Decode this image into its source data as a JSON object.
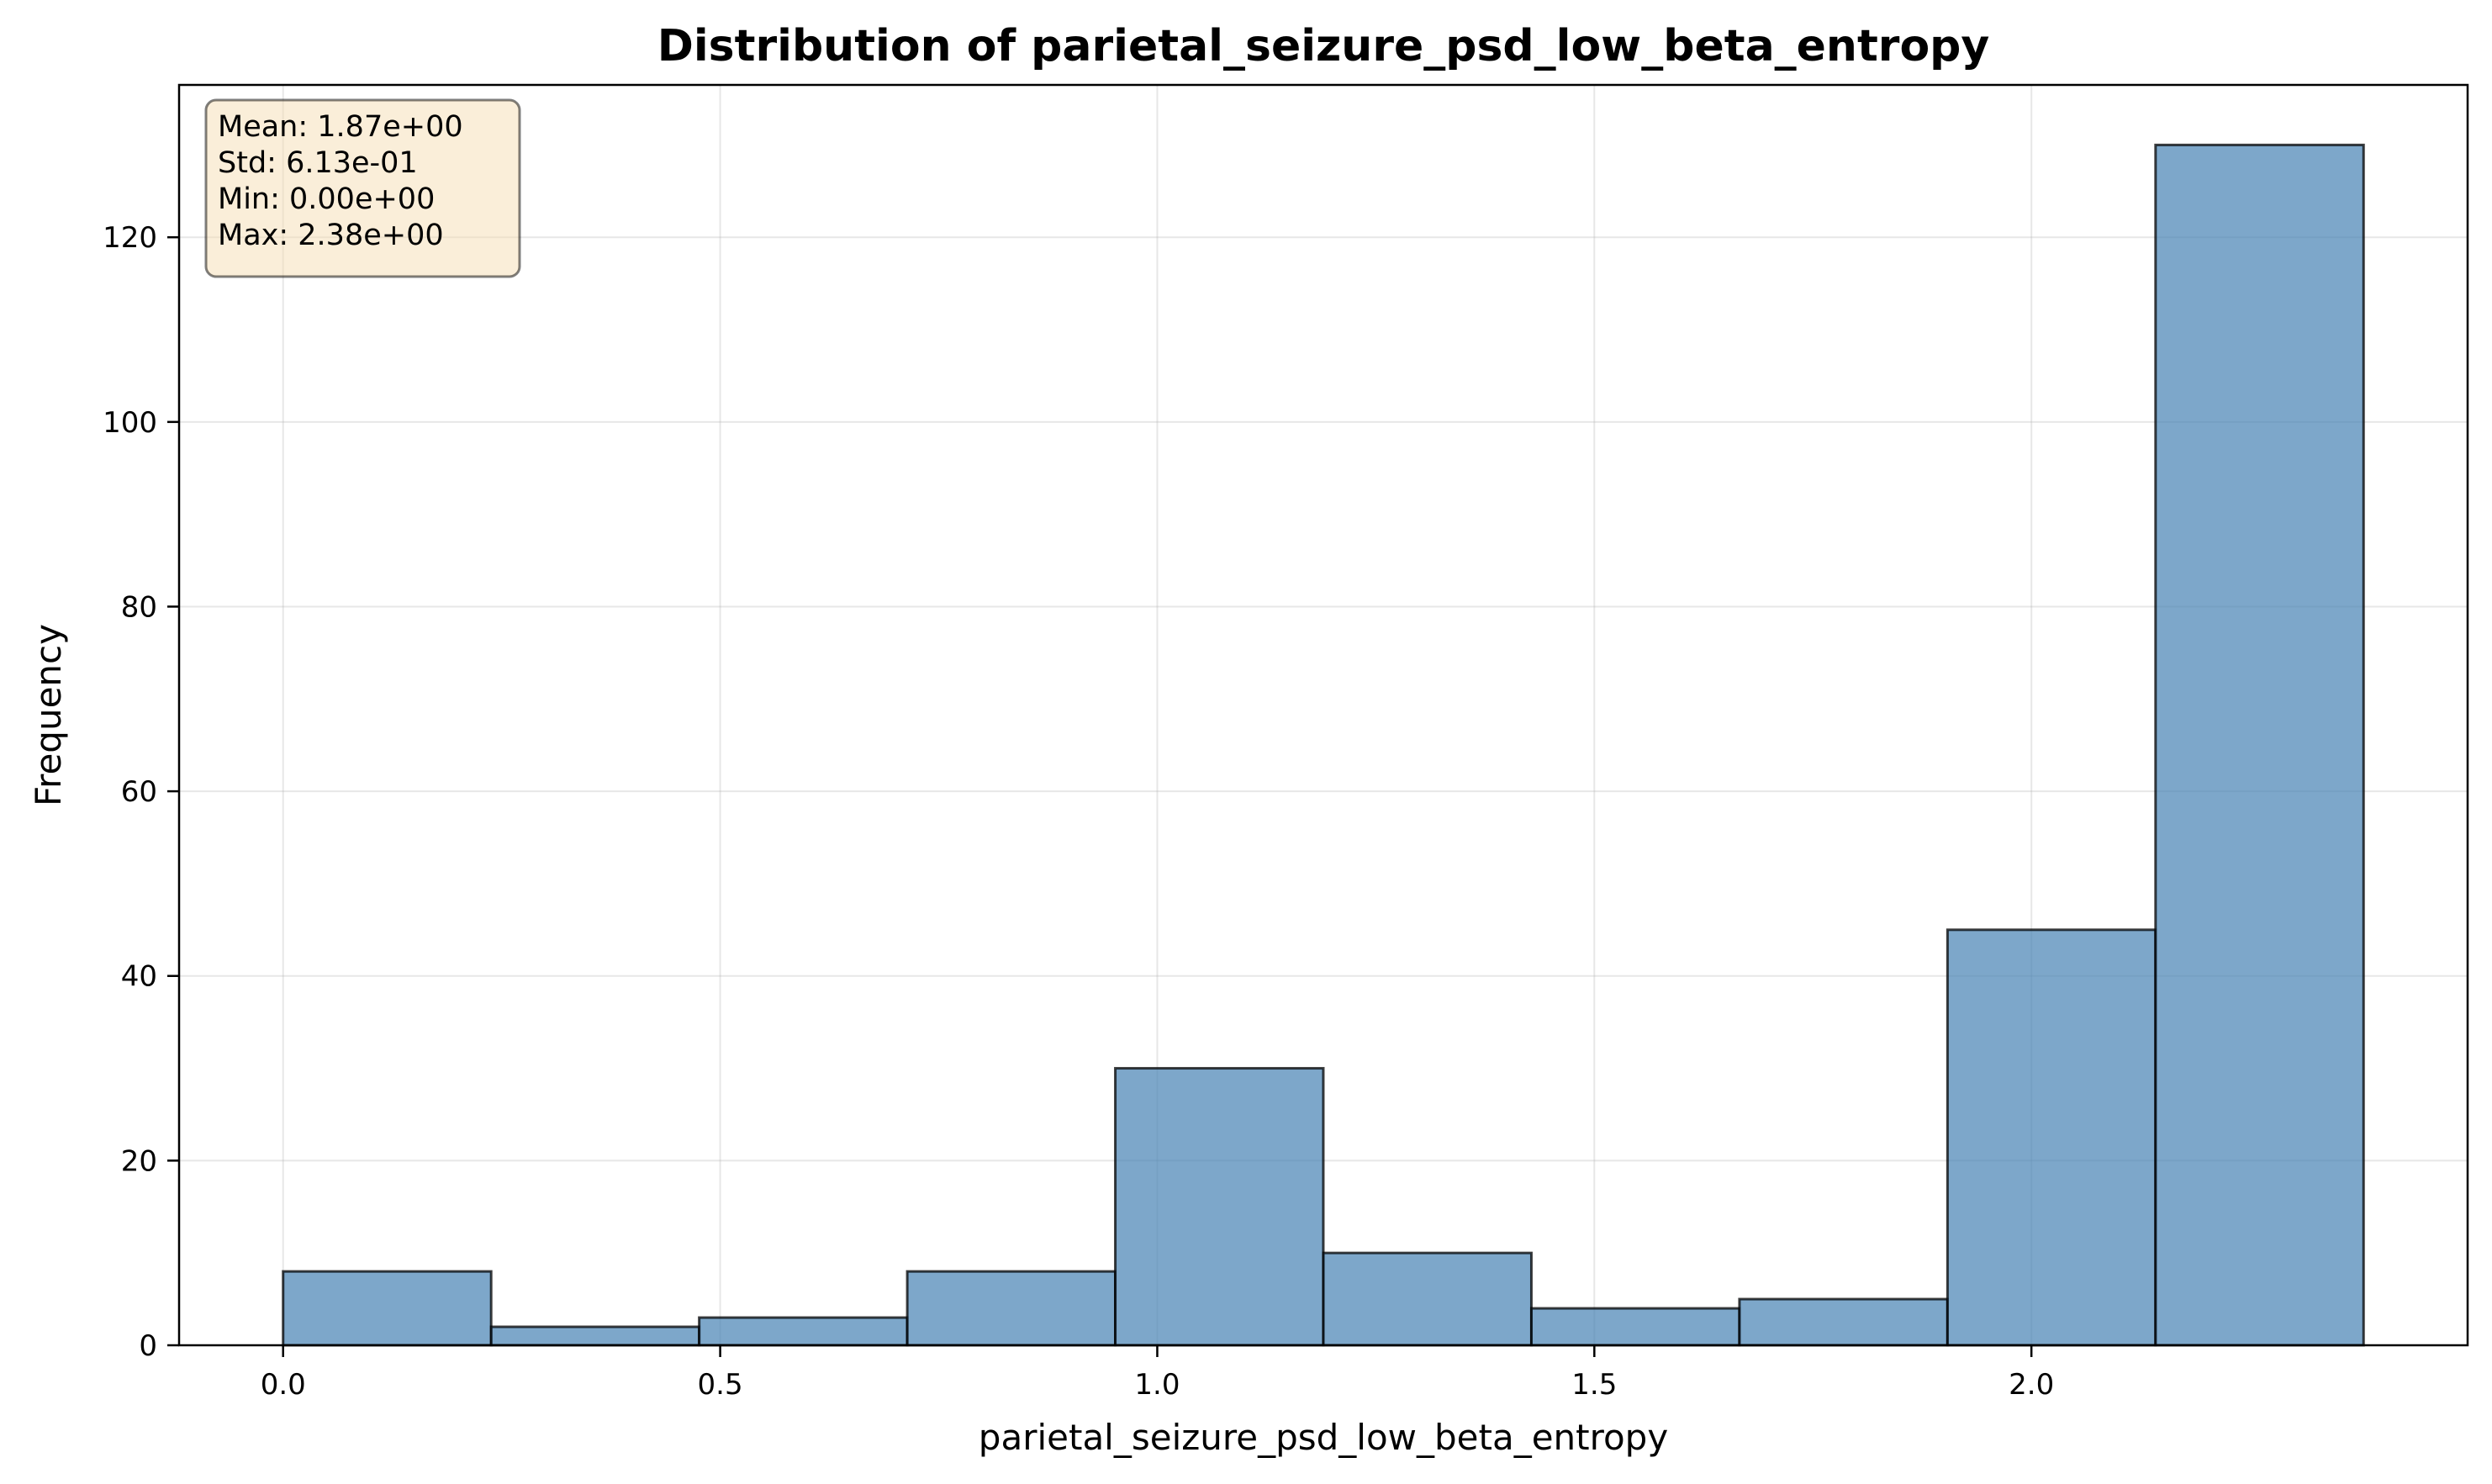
{
  "chart_data": {
    "type": "histogram",
    "title": "Distribution of parietal_seizure_psd_low_beta_entropy",
    "xlabel": "parietal_seizure_psd_low_beta_entropy",
    "ylabel": "Frequency",
    "xlim": [
      -0.119,
      2.499
    ],
    "ylim": [
      0,
      136.5
    ],
    "grid": true,
    "bar_color": "#4682b4",
    "edge_color": "#000000",
    "bin_edges": [
      0.0,
      0.238,
      0.476,
      0.714,
      0.952,
      1.19,
      1.428,
      1.666,
      1.904,
      2.142,
      2.38
    ],
    "values": [
      8,
      2,
      3,
      8,
      30,
      10,
      4,
      5,
      45,
      130
    ],
    "x_ticks": [
      0.0,
      0.5,
      1.0,
      1.5,
      2.0
    ],
    "x_tick_labels": [
      "0.0",
      "0.5",
      "1.0",
      "1.5",
      "2.0"
    ],
    "y_ticks": [
      0,
      20,
      40,
      60,
      80,
      100,
      120
    ],
    "y_tick_labels": [
      "0",
      "20",
      "40",
      "60",
      "80",
      "100",
      "120"
    ],
    "stats_box": {
      "position": "top-left",
      "lines": [
        "Mean: 1.87e+00",
        "Std: 6.13e-01",
        "Min: 0.00e+00",
        "Max: 2.38e+00"
      ]
    }
  }
}
